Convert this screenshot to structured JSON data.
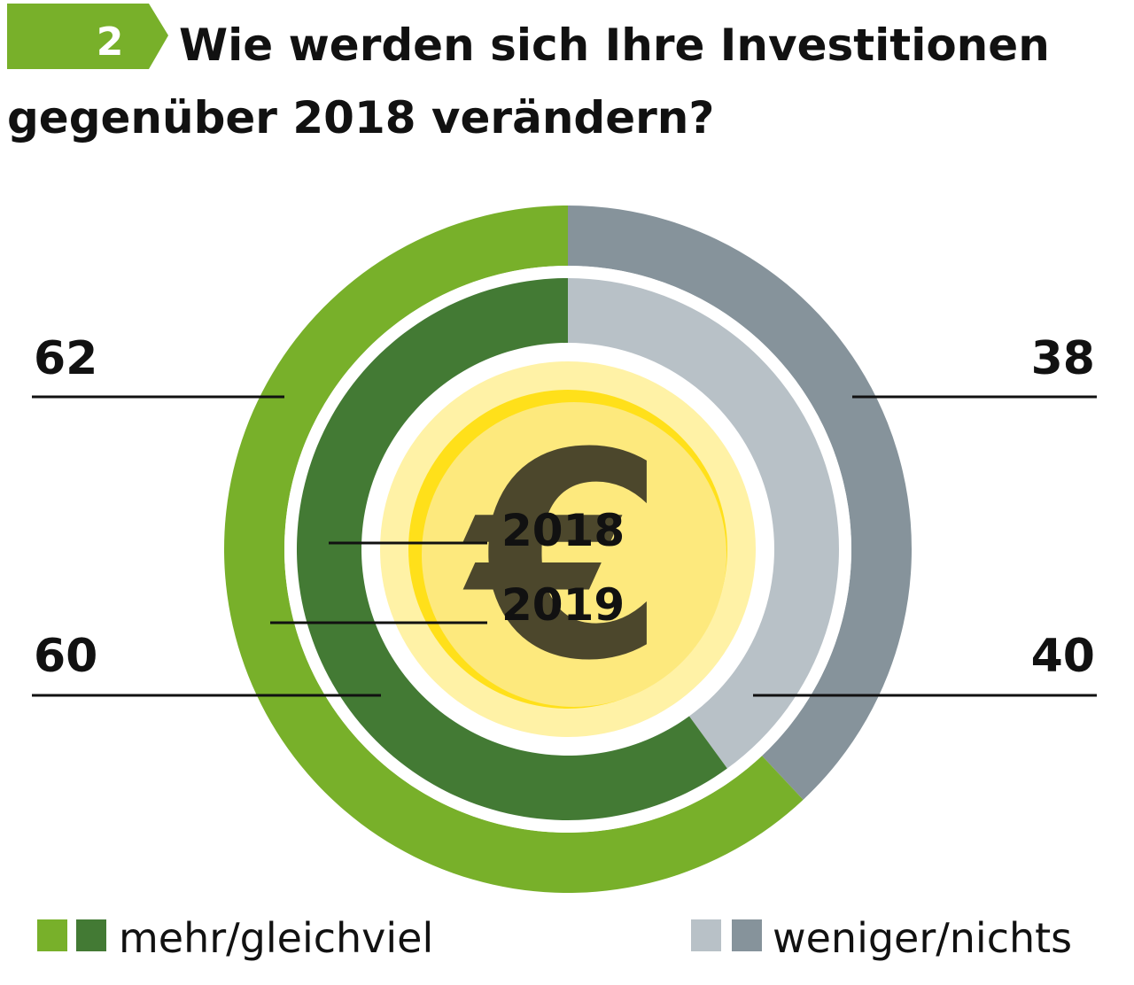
{
  "header": {
    "badge_number": "2",
    "title_line1": "Wie werden sich Ihre Investitionen",
    "title_line2": "gegenüber 2018 verändern?"
  },
  "colors": {
    "badge": "#78b02a",
    "outer_positive": "#78b02a",
    "outer_negative": "#86939b",
    "inner_positive": "#437a34",
    "inner_negative": "#b8c1c7",
    "coin_outer": "#fff2a6",
    "coin_ring": "#ffe01a",
    "coin_face": "#fde97d",
    "euro_symbol": "#f3dc6a"
  },
  "chart_data": {
    "type": "donut",
    "unit": "%",
    "center_icon": "euro-coin-icon",
    "center_labels": [
      "2018",
      "2019"
    ],
    "series": [
      {
        "name": "2019",
        "ring": "outer",
        "categories": [
          "mehr/gleichviel",
          "weniger/nichts"
        ],
        "values": [
          62,
          38
        ]
      },
      {
        "name": "2018",
        "ring": "inner",
        "categories": [
          "mehr/gleichviel",
          "weniger/nichts"
        ],
        "values": [
          60,
          40
        ]
      }
    ],
    "legend": [
      {
        "label": "mehr/gleichviel",
        "swatches": [
          "#78b02a",
          "#437a34"
        ]
      },
      {
        "label": "weniger/nichts",
        "swatches": [
          "#b8c1c7",
          "#86939b"
        ]
      }
    ],
    "legend_position": "bottom"
  }
}
